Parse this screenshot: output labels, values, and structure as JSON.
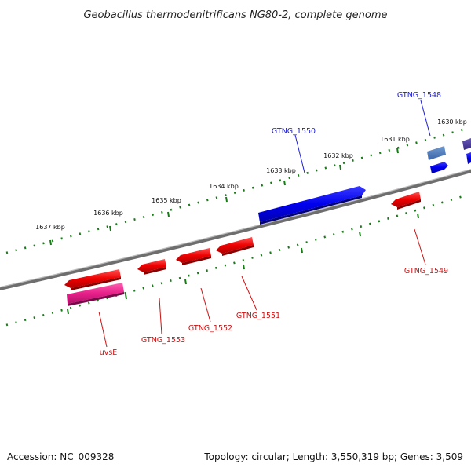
{
  "title": "Geobacillus thermodenitrificans NG80-2, complete genome",
  "accession": "Accession: NC_009328",
  "summary": "Topology: circular; Length: 3,550,319 bp; Genes: 3,509",
  "ticks": [
    "1637 kbp",
    "1636 kbp",
    "1635 kbp",
    "1634 kbp",
    "1633 kbp",
    "1632 kbp",
    "1631 kbp",
    "1630 kbp"
  ],
  "genes": {
    "forward": [
      "GTNG_1550",
      "GTNG_1548"
    ],
    "reverse": [
      "uvsE",
      "GTNG_1553",
      "GTNG_1552",
      "GTNG_1551",
      "GTNG_1549"
    ]
  },
  "colors": {
    "forward_gene": "#0000ee",
    "reverse_gene": "#ee0000",
    "pink_gene": "#e8208a",
    "tick_marks": "#1a7a1a",
    "backbone": "#888888"
  }
}
